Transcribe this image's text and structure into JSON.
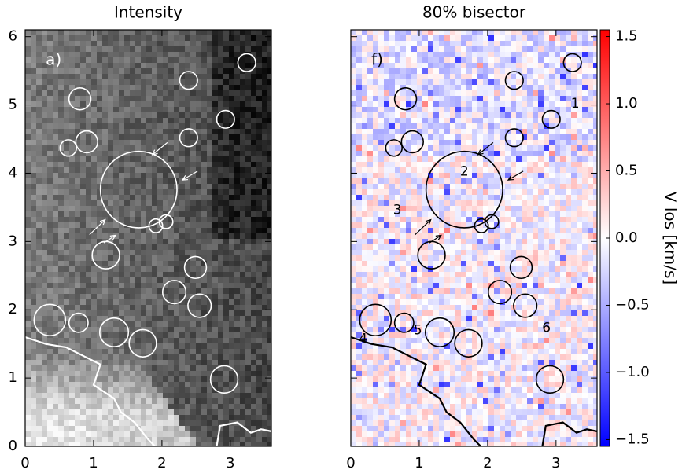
{
  "chart_data": [
    {
      "type": "image",
      "title": "Intensity",
      "panel_label": "a)",
      "xlim": [
        0,
        3.6
      ],
      "ylim": [
        0,
        6.1
      ],
      "xticks": [
        0,
        1,
        2,
        3
      ],
      "yticks": [
        0,
        1,
        2,
        3,
        4,
        5,
        6
      ],
      "circle_color": "#ffffff",
      "circles": [
        {
          "x": 3.24,
          "y": 5.62,
          "r": 0.13
        },
        {
          "x": 2.39,
          "y": 5.36,
          "r": 0.13
        },
        {
          "x": 0.8,
          "y": 5.09,
          "r": 0.16
        },
        {
          "x": 2.93,
          "y": 4.79,
          "r": 0.13
        },
        {
          "x": 2.39,
          "y": 4.52,
          "r": 0.13
        },
        {
          "x": 0.9,
          "y": 4.46,
          "r": 0.16
        },
        {
          "x": 0.63,
          "y": 4.37,
          "r": 0.12
        },
        {
          "x": 1.66,
          "y": 3.76,
          "r": 0.56
        },
        {
          "x": 2.06,
          "y": 3.29,
          "r": 0.1
        },
        {
          "x": 1.91,
          "y": 3.23,
          "r": 0.1
        },
        {
          "x": 1.18,
          "y": 2.8,
          "r": 0.2
        },
        {
          "x": 2.49,
          "y": 2.62,
          "r": 0.16
        },
        {
          "x": 2.18,
          "y": 2.26,
          "r": 0.17
        },
        {
          "x": 2.55,
          "y": 2.06,
          "r": 0.17
        },
        {
          "x": 0.36,
          "y": 1.85,
          "r": 0.23
        },
        {
          "x": 0.78,
          "y": 1.81,
          "r": 0.14
        },
        {
          "x": 1.3,
          "y": 1.67,
          "r": 0.21
        },
        {
          "x": 1.72,
          "y": 1.51,
          "r": 0.2
        },
        {
          "x": 2.91,
          "y": 0.98,
          "r": 0.2
        }
      ]
    },
    {
      "type": "image",
      "title": "80% bisector",
      "panel_label": "f)",
      "xlim": [
        0,
        3.6
      ],
      "ylim": [
        0,
        6.1
      ],
      "xticks": [
        0,
        1,
        2,
        3
      ],
      "yticks": [
        0,
        1,
        2,
        3,
        4,
        5,
        6
      ],
      "circle_color": "#000000",
      "annotations": [
        "1",
        "2",
        "3",
        "4",
        "5",
        "6"
      ],
      "circles": [
        {
          "x": 3.24,
          "y": 5.62,
          "r": 0.13
        },
        {
          "x": 2.39,
          "y": 5.36,
          "r": 0.13
        },
        {
          "x": 0.8,
          "y": 5.09,
          "r": 0.16
        },
        {
          "x": 2.93,
          "y": 4.79,
          "r": 0.13
        },
        {
          "x": 2.39,
          "y": 4.52,
          "r": 0.13
        },
        {
          "x": 0.9,
          "y": 4.46,
          "r": 0.16
        },
        {
          "x": 0.63,
          "y": 4.37,
          "r": 0.12
        },
        {
          "x": 1.66,
          "y": 3.76,
          "r": 0.56
        },
        {
          "x": 2.06,
          "y": 3.29,
          "r": 0.1
        },
        {
          "x": 1.91,
          "y": 3.23,
          "r": 0.1
        },
        {
          "x": 1.18,
          "y": 2.8,
          "r": 0.2
        },
        {
          "x": 2.49,
          "y": 2.62,
          "r": 0.16
        },
        {
          "x": 2.18,
          "y": 2.26,
          "r": 0.17
        },
        {
          "x": 2.55,
          "y": 2.06,
          "r": 0.17
        },
        {
          "x": 0.36,
          "y": 1.85,
          "r": 0.23
        },
        {
          "x": 0.78,
          "y": 1.81,
          "r": 0.14
        },
        {
          "x": 1.3,
          "y": 1.67,
          "r": 0.21
        },
        {
          "x": 1.72,
          "y": 1.51,
          "r": 0.2
        },
        {
          "x": 2.91,
          "y": 0.98,
          "r": 0.2
        }
      ]
    },
    {
      "type": "colorbar",
      "ylabel": "V los [km/s]",
      "ylim": [
        -1.55,
        1.55
      ],
      "colors": [
        "#0000ff",
        "#ffffff",
        "#ff0000"
      ],
      "yticks": [
        {
          "value": 1.5,
          "label": "1.5"
        },
        {
          "value": 1,
          "label": "1.0"
        },
        {
          "value": 0.5,
          "label": "0.5"
        },
        {
          "value": 0,
          "label": "0.0"
        },
        {
          "value": -0.5,
          "label": "−0.5"
        },
        {
          "value": -1,
          "label": "−1.0"
        },
        {
          "value": -1.5,
          "label": "−1.5"
        }
      ]
    }
  ]
}
